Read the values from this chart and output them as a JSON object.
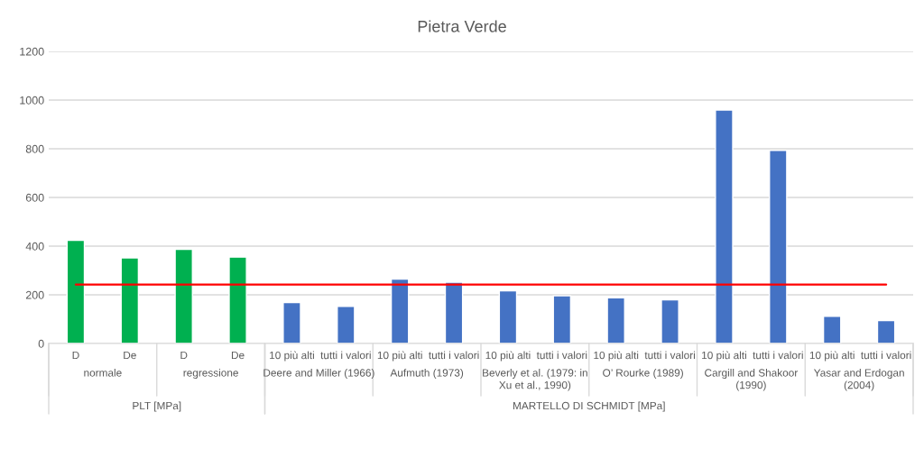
{
  "chart_data": {
    "type": "bar",
    "title": "Pietra Verde",
    "categories": [
      "D",
      "De",
      "D",
      "De",
      "10 più alti",
      "tutti i valori",
      "10 più alti",
      "tutti i valori",
      "10 più alti",
      "tutti i valori",
      "10 più alti",
      "tutti i valori",
      "10 più alti",
      "tutti i valori",
      "10 più alti",
      "tutti i valori"
    ],
    "series": [
      {
        "colors": [
          "#00b050",
          "#00b050",
          "#00b050",
          "#00b050",
          "#4472c4",
          "#4472c4",
          "#4472c4",
          "#4472c4",
          "#4472c4",
          "#4472c4",
          "#4472c4",
          "#4472c4",
          "#4472c4",
          "#4472c4",
          "#4472c4",
          "#4472c4"
        ],
        "values": [
          424,
          352,
          387,
          355,
          168,
          153,
          265,
          252,
          216,
          196,
          188,
          179,
          959,
          793,
          112,
          94
        ]
      },
      {
        "type": "line",
        "color": "#ff0000",
        "values": [
          242,
          242,
          242,
          242,
          242,
          242,
          242,
          242,
          242,
          242,
          242,
          242,
          242,
          242,
          242,
          242
        ]
      }
    ],
    "annotations": [
      "normale",
      "regressione",
      "Deere and Miller (1966)",
      "Aufmuth (1973)",
      "Beverly et al. (1979: in\nXu et al., 1990)",
      "O’ Rourke (1989)",
      "Cargill and Shakoor\n(1990)",
      "Yasar and Erdogan\n(2004)",
      "PLT [MPa]",
      "MARTELLO DI SCHMIDT [MPa]"
    ],
    "ylim": [
      0,
      1200
    ],
    "yticks": [
      0,
      200,
      400,
      600,
      800,
      1000,
      1200
    ],
    "grid": "y"
  }
}
